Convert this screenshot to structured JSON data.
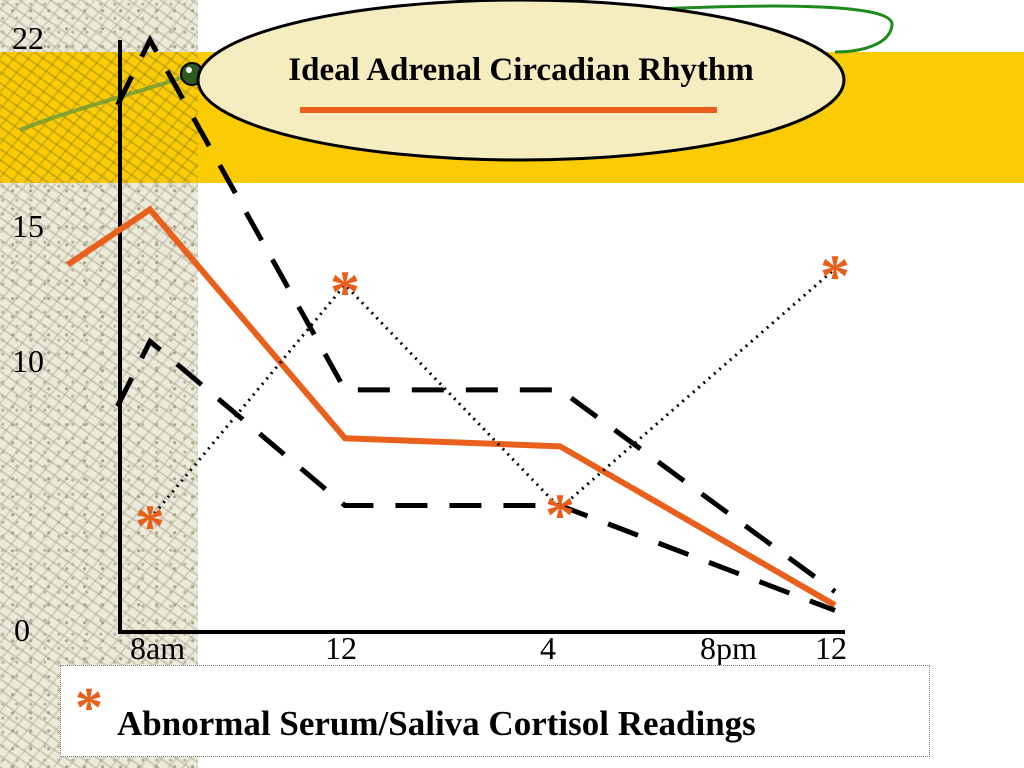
{
  "chart_data": {
    "type": "line",
    "title": "Ideal Adrenal Circadian Rhythm",
    "x_ticks": [
      "8am",
      "12",
      "4",
      "8pm",
      "12"
    ],
    "y_ticks": [
      "0",
      "10",
      "15",
      "22"
    ],
    "ylim": [
      0,
      22
    ],
    "series": [
      {
        "role": "ideal",
        "style": "solid",
        "color": "#e8601c",
        "x": [
          "8am",
          "12",
          "4",
          "12"
        ],
        "values": [
          15.7,
          7.2,
          6.9,
          1.0
        ]
      },
      {
        "role": "upper-bound",
        "style": "dashed",
        "color": "#000000",
        "x": [
          "8am",
          "12",
          "4",
          "12"
        ],
        "values": [
          22.0,
          9.0,
          9.0,
          1.5
        ]
      },
      {
        "role": "lower-bound",
        "style": "dashed",
        "color": "#000000",
        "x": [
          "8am",
          "12",
          "4",
          "12"
        ],
        "values": [
          10.8,
          4.7,
          4.7,
          0.8
        ]
      },
      {
        "role": "abnormal",
        "style": "dotted",
        "color": "#000000",
        "marker": "*",
        "marker_color": "#e8601c",
        "x": [
          "8am",
          "12",
          "4",
          "12"
        ],
        "values": [
          4.2,
          12.9,
          4.6,
          13.5
        ]
      }
    ],
    "legend": {
      "marker": "*",
      "text": "Abnormal Serum/Saliva Cortisol Readings"
    }
  },
  "colors": {
    "accent": "#e8601c",
    "band": "#fbcc04",
    "oval_fill": "#f5ecbf"
  }
}
